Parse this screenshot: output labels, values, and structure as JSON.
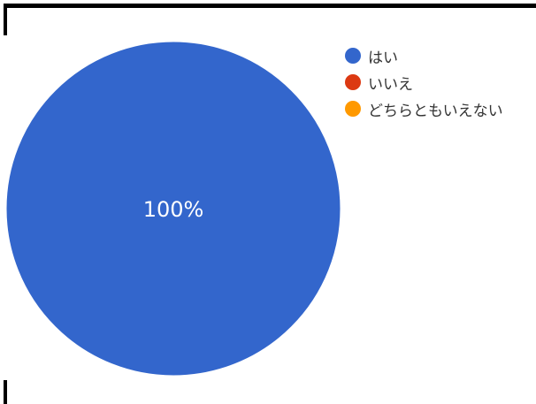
{
  "chart_data": {
    "type": "pie",
    "categories": [
      "はい",
      "いいえ",
      "どちらともいえない"
    ],
    "values": [
      100,
      0,
      0
    ],
    "colors": [
      "#3366cc",
      "#dc3912",
      "#ff9900"
    ],
    "slice_labels": [
      "100%"
    ],
    "legend_placement": "right"
  }
}
